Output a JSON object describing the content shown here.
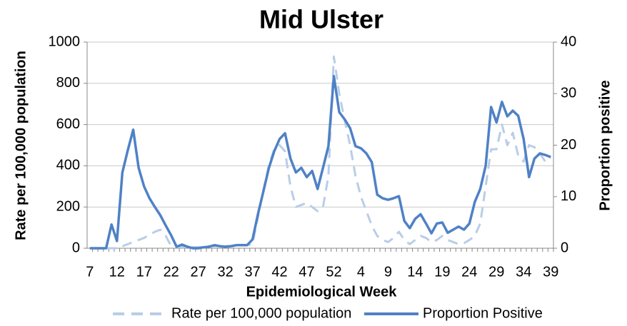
{
  "chart_data": {
    "type": "line",
    "title": "Mid Ulster",
    "x_label": "Epidemiological Week",
    "y_label": "Rate per 100,000 population",
    "y2_label": "Proportion positive",
    "categories": [
      "7",
      null,
      null,
      null,
      null,
      "12",
      null,
      null,
      null,
      null,
      "17",
      null,
      null,
      null,
      null,
      "22",
      null,
      null,
      null,
      null,
      "27",
      null,
      null,
      null,
      null,
      "32",
      null,
      null,
      null,
      null,
      "37",
      null,
      null,
      null,
      null,
      "42",
      null,
      null,
      null,
      null,
      "47",
      null,
      null,
      null,
      null,
      "52",
      null,
      null,
      null,
      null,
      "4",
      null,
      null,
      null,
      null,
      "9",
      null,
      null,
      null,
      null,
      "14",
      null,
      null,
      null,
      null,
      "19",
      null,
      null,
      null,
      null,
      "24",
      null,
      null,
      null,
      null,
      "29",
      null,
      null,
      null,
      null,
      "34",
      null,
      null,
      null,
      null,
      "39"
    ],
    "series": [
      {
        "name": "Rate per 100,000 population",
        "color": "#b9cde8",
        "style": "dashed",
        "axis": "y",
        "values": [
          0,
          0,
          0,
          0,
          0,
          0,
          10,
          20,
          30,
          40,
          50,
          65,
          80,
          90,
          60,
          10,
          5,
          5,
          5,
          5,
          5,
          5,
          10,
          10,
          10,
          10,
          10,
          10,
          15,
          15,
          20,
          150,
          280,
          400,
          480,
          500,
          470,
          300,
          200,
          210,
          220,
          200,
          180,
          200,
          350,
          930,
          750,
          620,
          500,
          350,
          250,
          180,
          110,
          60,
          40,
          30,
          50,
          80,
          40,
          20,
          40,
          60,
          50,
          30,
          40,
          60,
          40,
          30,
          20,
          25,
          40,
          60,
          120,
          300,
          480,
          480,
          600,
          500,
          560,
          450,
          420,
          500,
          490,
          460,
          420,
          440
        ]
      },
      {
        "name": "Proportion Positive",
        "color": "#4f81c6",
        "style": "solid",
        "axis": "y2",
        "values": [
          0,
          0,
          0,
          0,
          4.6,
          1.4,
          14.7,
          19,
          23,
          15.6,
          12,
          9.7,
          8,
          6.4,
          4.4,
          2.5,
          0.3,
          0.7,
          0.3,
          0,
          0,
          0.2,
          0.3,
          0.6,
          0.4,
          0.3,
          0.4,
          0.6,
          0.6,
          0.6,
          1.7,
          6.6,
          11,
          15.5,
          18.8,
          21.2,
          22.3,
          17.4,
          14.7,
          15.6,
          13.8,
          15,
          11.5,
          15.6,
          19.8,
          33.4,
          26.4,
          25,
          23.3,
          19.8,
          19.4,
          18.4,
          16.7,
          10.4,
          9.7,
          9.4,
          9.7,
          10.1,
          5.3,
          3.9,
          5.7,
          6.6,
          4.8,
          2.9,
          4.8,
          5,
          3,
          3.6,
          4.2,
          3.6,
          4.8,
          9,
          11.5,
          16,
          27.4,
          24.4,
          28.4,
          25.6,
          26.7,
          25.7,
          21.2,
          13.8,
          17.4,
          18.4,
          18.1,
          17.7
        ]
      }
    ],
    "ylim": [
      0,
      1000
    ],
    "yticks": [
      0,
      200,
      400,
      600,
      800,
      1000
    ],
    "y2lim": [
      0,
      40
    ],
    "y2ticks": [
      0,
      10,
      20,
      30,
      40
    ],
    "grid": true,
    "legend": "bottom"
  }
}
